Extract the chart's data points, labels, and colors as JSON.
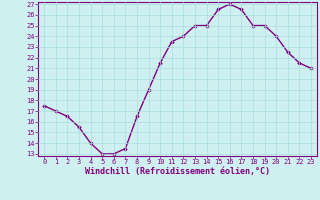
{
  "x": [
    0,
    1,
    2,
    3,
    4,
    5,
    6,
    7,
    8,
    9,
    10,
    11,
    12,
    13,
    14,
    15,
    16,
    17,
    18,
    19,
    20,
    21,
    22,
    23
  ],
  "y": [
    17.5,
    17.0,
    16.5,
    15.5,
    14.0,
    13.0,
    13.0,
    13.5,
    16.5,
    19.0,
    21.5,
    23.5,
    24.0,
    25.0,
    25.0,
    26.5,
    27.0,
    26.5,
    25.0,
    25.0,
    24.0,
    22.5,
    21.5,
    21.0
  ],
  "line_color": "#800080",
  "marker": "D",
  "markersize": 1.8,
  "linewidth": 1.0,
  "xlabel": "Windchill (Refroidissement éolien,°C)",
  "ylim": [
    13,
    27
  ],
  "xlim": [
    -0.5,
    23.5
  ],
  "yticks": [
    13,
    14,
    15,
    16,
    17,
    18,
    19,
    20,
    21,
    22,
    23,
    24,
    25,
    26,
    27
  ],
  "xticks": [
    0,
    1,
    2,
    3,
    4,
    5,
    6,
    7,
    8,
    9,
    10,
    11,
    12,
    13,
    14,
    15,
    16,
    17,
    18,
    19,
    20,
    21,
    22,
    23
  ],
  "bg_color": "#cff0f0",
  "grid_color": "#aadddd",
  "tick_color": "#800080",
  "label_color": "#800080",
  "spine_color": "#800080",
  "font_family": "monospace",
  "tick_fontsize": 5.0,
  "xlabel_fontsize": 6.0
}
